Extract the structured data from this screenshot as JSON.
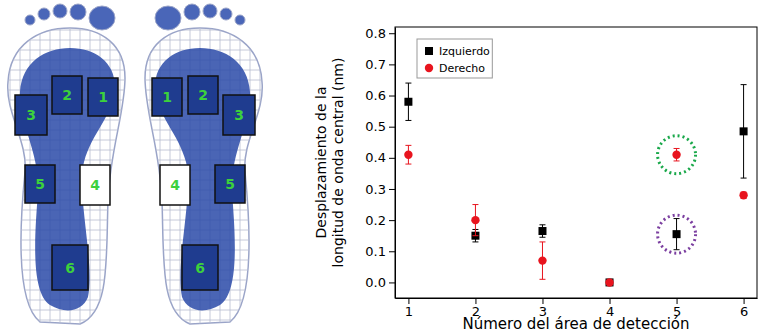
{
  "chart_data": {
    "type": "scatter",
    "x_label": "Número del área de detección",
    "y_label": "Desplazamiento de la longitud de onda central (nm)",
    "x": [
      1,
      2,
      3,
      4,
      5,
      6
    ],
    "xlim": [
      0.8,
      6.2
    ],
    "xticks": [
      1,
      2,
      3,
      4,
      5,
      6
    ],
    "ylim": [
      -0.05,
      0.82
    ],
    "yticks": [
      {
        "value": 0,
        "label": "0.0"
      },
      {
        "value": 0.1,
        "label": "0.1"
      },
      {
        "value": 0.2,
        "label": "0.2"
      },
      {
        "value": 0.3,
        "label": "0.3"
      },
      {
        "value": 0.4,
        "label": "0.4"
      },
      {
        "value": 0.5,
        "label": "0.5"
      },
      {
        "value": 0.6,
        "label": "0.6"
      },
      {
        "value": 0.7,
        "label": "0.7"
      },
      {
        "value": 0.8,
        "label": "0.8"
      }
    ],
    "grid": false,
    "legend": "upper left",
    "series": [
      {
        "name": "Izquierdo",
        "color": "#000000",
        "marker": "square",
        "values": [
          0.58,
          0.15,
          0.165,
          0.0,
          0.155,
          0.485
        ],
        "errors": [
          0.06,
          0.02,
          0.02,
          0.0,
          0.05,
          0.15
        ]
      },
      {
        "name": "Derecho",
        "color": "#e8141e",
        "marker": "circle",
        "values": [
          0.41,
          0.2,
          0.07,
          0.0,
          0.41,
          0.28
        ],
        "errors": [
          0.03,
          0.05,
          0.06,
          0.0,
          0.02,
          0.01
        ]
      }
    ]
  },
  "foot_diagram": {
    "left_foot_areas": [
      "1",
      "2",
      "3",
      "4",
      "5",
      "6"
    ],
    "right_foot_areas": [
      "1",
      "2",
      "3",
      "4",
      "5",
      "6"
    ]
  }
}
